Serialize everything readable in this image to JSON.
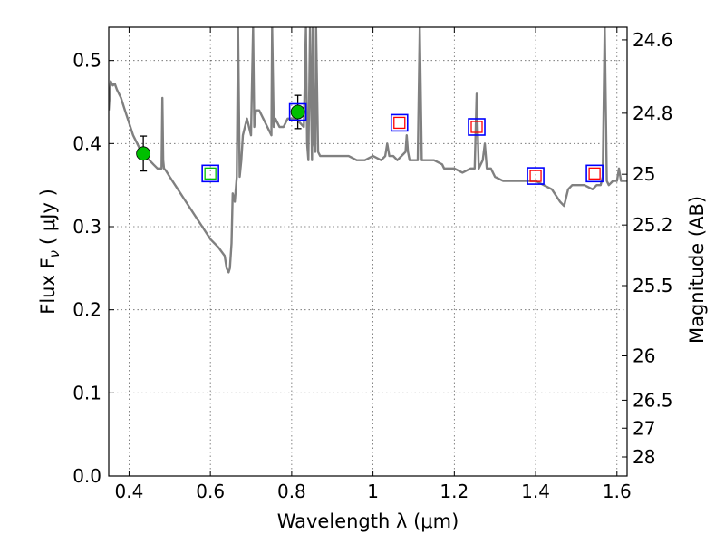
{
  "chart_data": {
    "type": "line",
    "title": "",
    "xlabel": "Wavelength  λ (μm)",
    "ylabel": "Flux  F",
    "ylabel_sub": "ν",
    "ylabel_unit": "( μJy )",
    "y2label": "Magnitude (AB)",
    "xlim": [
      0.35,
      1.625
    ],
    "ylim": [
      0.0,
      0.54
    ],
    "grid": true,
    "x_ticks": [
      0.4,
      0.6,
      0.8,
      1.0,
      1.2,
      1.4,
      1.6
    ],
    "x_tick_labels": [
      "0.4",
      "0.6",
      "0.8",
      "1",
      "1.2",
      "1.4",
      "1.6"
    ],
    "y_ticks": [
      0.0,
      0.1,
      0.2,
      0.3,
      0.4,
      0.5
    ],
    "y_tick_labels": [
      "0.0",
      "0.1",
      "0.2",
      "0.3",
      "0.4",
      "0.5"
    ],
    "y2_ticks": [
      24.6,
      24.8,
      25,
      25.2,
      25.5,
      26,
      26.5,
      27,
      28
    ],
    "y2_tick_labels": [
      "24.6",
      "24.8",
      "25",
      "25.2",
      "25.5",
      "26",
      "26.5",
      "27",
      "28"
    ],
    "series": [
      {
        "kind": "model-spectrum",
        "color": "#808080",
        "x": [
          0.35,
          0.355,
          0.36,
          0.365,
          0.37,
          0.38,
          0.39,
          0.4,
          0.41,
          0.42,
          0.43,
          0.44,
          0.45,
          0.46,
          0.47,
          0.48,
          0.482,
          0.484,
          0.486,
          0.49,
          0.5,
          0.52,
          0.54,
          0.56,
          0.58,
          0.6,
          0.62,
          0.635,
          0.64,
          0.645,
          0.648,
          0.652,
          0.655,
          0.66,
          0.665,
          0.668,
          0.672,
          0.676,
          0.68,
          0.69,
          0.7,
          0.705,
          0.708,
          0.712,
          0.72,
          0.73,
          0.74,
          0.75,
          0.752,
          0.756,
          0.76,
          0.77,
          0.78,
          0.79,
          0.8,
          0.81,
          0.82,
          0.83,
          0.835,
          0.838,
          0.841,
          0.845,
          0.85,
          0.852,
          0.855,
          0.858,
          0.86,
          0.865,
          0.87,
          0.88,
          0.9,
          0.92,
          0.94,
          0.96,
          0.98,
          1.0,
          1.02,
          1.03,
          1.035,
          1.04,
          1.05,
          1.06,
          1.07,
          1.08,
          1.083,
          1.086,
          1.09,
          1.1,
          1.11,
          1.115,
          1.12,
          1.13,
          1.15,
          1.17,
          1.175,
          1.18,
          1.19,
          1.2,
          1.22,
          1.24,
          1.25,
          1.255,
          1.26,
          1.27,
          1.275,
          1.28,
          1.29,
          1.3,
          1.32,
          1.34,
          1.36,
          1.38,
          1.4,
          1.42,
          1.44,
          1.46,
          1.47,
          1.48,
          1.49,
          1.5,
          1.52,
          1.54,
          1.55,
          1.56,
          1.565,
          1.57,
          1.575,
          1.58,
          1.59,
          1.6,
          1.605,
          1.61,
          1.62,
          1.625
        ],
        "y": [
          0.44,
          0.475,
          0.47,
          0.472,
          0.465,
          0.455,
          0.44,
          0.425,
          0.41,
          0.4,
          0.39,
          0.385,
          0.38,
          0.375,
          0.37,
          0.37,
          0.455,
          0.38,
          0.37,
          0.368,
          0.36,
          0.345,
          0.33,
          0.315,
          0.3,
          0.285,
          0.275,
          0.265,
          0.25,
          0.245,
          0.25,
          0.28,
          0.34,
          0.33,
          0.36,
          0.54,
          0.36,
          0.38,
          0.41,
          0.43,
          0.41,
          0.54,
          0.42,
          0.44,
          0.44,
          0.43,
          0.42,
          0.41,
          0.54,
          0.42,
          0.43,
          0.42,
          0.42,
          0.43,
          0.43,
          0.43,
          0.425,
          0.42,
          0.54,
          0.4,
          0.38,
          0.54,
          0.38,
          0.54,
          0.4,
          0.39,
          0.54,
          0.39,
          0.385,
          0.385,
          0.385,
          0.385,
          0.385,
          0.38,
          0.38,
          0.385,
          0.38,
          0.385,
          0.4,
          0.385,
          0.385,
          0.38,
          0.385,
          0.39,
          0.41,
          0.39,
          0.38,
          0.38,
          0.38,
          0.54,
          0.38,
          0.38,
          0.38,
          0.375,
          0.37,
          0.37,
          0.37,
          0.37,
          0.365,
          0.37,
          0.37,
          0.46,
          0.37,
          0.38,
          0.4,
          0.37,
          0.37,
          0.36,
          0.355,
          0.355,
          0.355,
          0.355,
          0.355,
          0.35,
          0.345,
          0.33,
          0.325,
          0.345,
          0.35,
          0.35,
          0.35,
          0.345,
          0.35,
          0.35,
          0.36,
          0.54,
          0.355,
          0.35,
          0.355,
          0.355,
          0.37,
          0.355,
          0.355,
          0.355
        ]
      },
      {
        "kind": "observed-photometry",
        "marker": "circle",
        "color": "#00bf00",
        "x": [
          0.435,
          0.815
        ],
        "y": [
          0.388,
          0.438
        ],
        "yerr": [
          0.021,
          0.02
        ]
      },
      {
        "kind": "model-photometry-box",
        "marker": "square",
        "color": "#0000ff",
        "x": [
          0.6,
          0.815,
          1.065,
          1.255,
          1.4,
          1.545
        ],
        "y": [
          0.364,
          0.438,
          0.425,
          0.42,
          0.361,
          0.364
        ]
      },
      {
        "kind": "model-photometry-inner",
        "marker": "square",
        "colors": [
          "#00bf00",
          "#ff0000",
          "#ff0000",
          "#ff0000",
          "#ff0000"
        ],
        "x": [
          0.6,
          1.065,
          1.255,
          1.4,
          1.545
        ],
        "y": [
          0.364,
          0.425,
          0.42,
          0.361,
          0.364
        ]
      }
    ]
  }
}
